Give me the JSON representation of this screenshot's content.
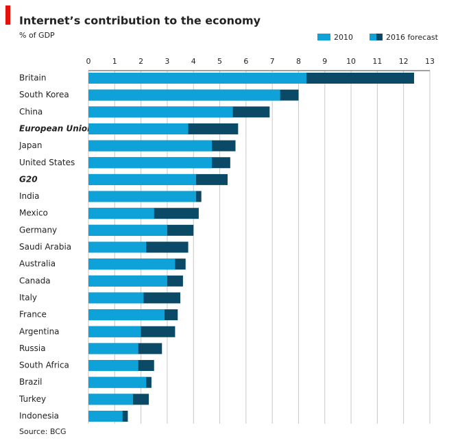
{
  "chart_data": {
    "type": "bar",
    "orientation": "horizontal",
    "title": "Internet’s contribution to the economy",
    "subtitle": "% of GDP",
    "source": "Source: BCG",
    "categories": [
      "Britain",
      "South Korea",
      "China",
      "European Union",
      "Japan",
      "United States",
      "G20",
      "India",
      "Mexico",
      "Germany",
      "Saudi Arabia",
      "Australia",
      "Canada",
      "Italy",
      "France",
      "Argentina",
      "Russia",
      "South Africa",
      "Brazil",
      "Turkey",
      "Indonesia"
    ],
    "emphasis": [
      3,
      6
    ],
    "series": [
      {
        "name": "2010",
        "color": "#0fa2d8",
        "values": [
          8.3,
          7.3,
          5.5,
          3.8,
          4.7,
          4.7,
          4.1,
          4.1,
          2.5,
          3.0,
          2.2,
          3.3,
          3.0,
          2.1,
          2.9,
          2.0,
          1.9,
          1.9,
          2.2,
          1.7,
          1.3
        ]
      },
      {
        "name": "2016 forecast",
        "color": "#0b4a66",
        "values": [
          12.4,
          8.0,
          6.9,
          5.7,
          5.6,
          5.4,
          5.3,
          4.3,
          4.2,
          4.0,
          3.8,
          3.7,
          3.6,
          3.5,
          3.4,
          3.3,
          2.8,
          2.5,
          2.4,
          2.3,
          1.5
        ]
      }
    ],
    "xlim": [
      0,
      13
    ],
    "xticks": [
      0,
      1,
      2,
      3,
      4,
      5,
      6,
      7,
      8,
      9,
      10,
      11,
      12,
      13
    ],
    "grid": true
  }
}
